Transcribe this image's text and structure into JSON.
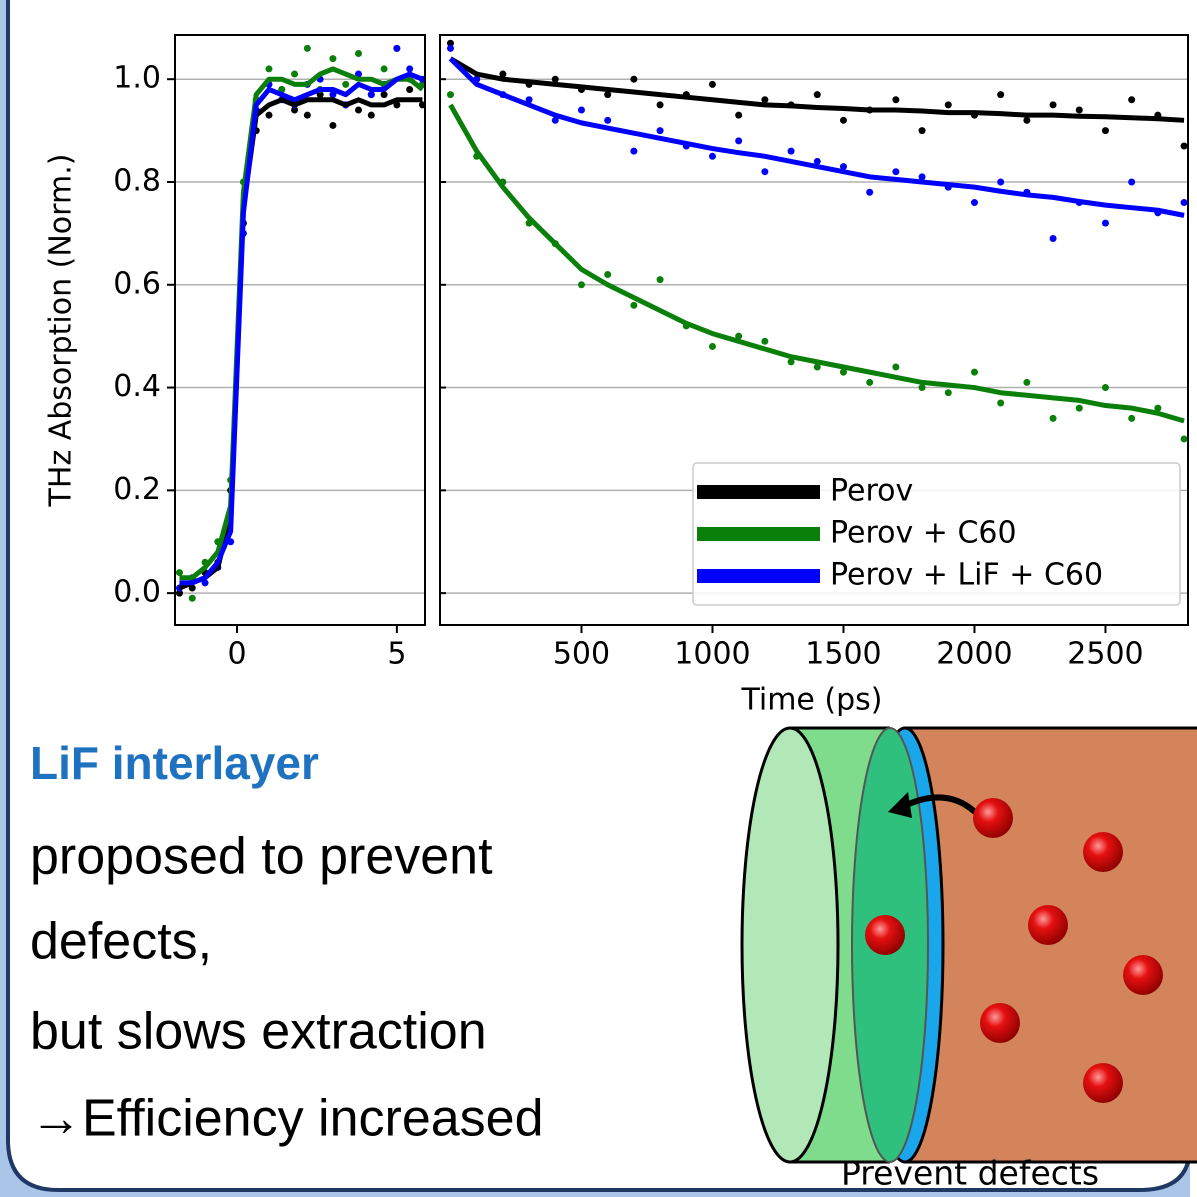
{
  "chart_data": [
    {
      "type": "line",
      "ylabel": "THz Absorption (Norm.)",
      "x": [
        -1.8,
        -1.4,
        -1.0,
        -0.6,
        -0.2,
        0.2,
        0.6,
        1.0,
        1.4,
        1.8,
        2.2,
        2.6,
        3.0,
        3.4,
        3.8,
        4.2,
        4.6,
        5.0,
        5.4,
        5.8
      ],
      "xlim": [
        -1.94,
        5.88
      ],
      "xticks": [
        0,
        5
      ],
      "ylim": [
        -0.062,
        1.086
      ],
      "yticks": [
        {
          "value": 0,
          "label": "0.0"
        },
        0.2,
        0.4,
        0.6,
        0.8,
        {
          "value": 1,
          "label": "1.0"
        }
      ],
      "grid": true,
      "series": [
        {
          "color": "#000000",
          "values": [
            0.01,
            0.02,
            0.03,
            0.05,
            0.15,
            0.75,
            0.93,
            0.95,
            0.96,
            0.95,
            0.96,
            0.96,
            0.96,
            0.95,
            0.96,
            0.95,
            0.95,
            0.96,
            0.96,
            0.96
          ],
          "points": [
            0.0,
            0.01,
            0.04,
            0.06,
            0.2,
            0.72,
            0.9,
            0.93,
            0.98,
            0.94,
            0.93,
            0.97,
            0.91,
            0.95,
            0.94,
            0.93,
            0.97,
            0.95,
            0.98,
            0.95
          ]
        },
        {
          "color": "#0a800a",
          "values": [
            0.03,
            0.03,
            0.05,
            0.08,
            0.17,
            0.78,
            0.97,
            1.0,
            1.0,
            0.99,
            0.99,
            1.01,
            1.02,
            1.01,
            1.0,
            1.0,
            0.99,
            1.0,
            1.0,
            0.98
          ],
          "points": [
            0.04,
            -0.01,
            0.06,
            0.1,
            0.22,
            0.8,
            0.96,
            1.02,
            0.98,
            1.01,
            1.06,
            0.98,
            1.04,
            0.99,
            1.05,
            0.97,
            1.02,
            1.06,
            1.0,
            0.99
          ]
        },
        {
          "color": "#0000ff",
          "values": [
            0.02,
            0.02,
            0.03,
            0.06,
            0.12,
            0.74,
            0.95,
            0.98,
            0.97,
            0.96,
            0.97,
            0.98,
            0.98,
            0.97,
            0.99,
            0.98,
            0.98,
            1.0,
            1.01,
            1.0
          ],
          "points": [
            0.01,
            0.03,
            0.02,
            0.05,
            0.1,
            0.7,
            0.94,
            0.99,
            0.96,
            0.95,
            0.99,
            1.0,
            0.97,
            0.95,
            1.01,
            0.97,
            0.99,
            1.06,
            1.02,
            1.0
          ]
        }
      ]
    },
    {
      "type": "line",
      "xlabel": "Time (ps)",
      "x": [
        0,
        100,
        200,
        300,
        400,
        500,
        600,
        700,
        800,
        900,
        1000,
        1100,
        1200,
        1300,
        1400,
        1500,
        1600,
        1700,
        1800,
        1900,
        2000,
        2100,
        2200,
        2300,
        2400,
        2500,
        2600,
        2700,
        2800
      ],
      "xlim": [
        -40,
        2815
      ],
      "xticks": [
        500,
        1000,
        1500,
        2000,
        2500
      ],
      "ylim": [
        -0.062,
        1.086
      ],
      "grid": true,
      "legend": "lower right",
      "series": [
        {
          "name": "Perov",
          "color": "#000000",
          "values": [
            1.04,
            1.01,
            1.0,
            0.995,
            0.99,
            0.985,
            0.98,
            0.975,
            0.97,
            0.965,
            0.96,
            0.955,
            0.95,
            0.948,
            0.945,
            0.943,
            0.94,
            0.94,
            0.938,
            0.935,
            0.935,
            0.933,
            0.93,
            0.93,
            0.928,
            0.927,
            0.925,
            0.923,
            0.92
          ],
          "points": [
            1.07,
            1.0,
            1.01,
            0.99,
            1.0,
            0.98,
            0.97,
            1.0,
            0.95,
            0.97,
            0.99,
            0.93,
            0.96,
            0.95,
            0.97,
            0.92,
            0.94,
            0.96,
            0.9,
            0.95,
            0.93,
            0.97,
            0.92,
            0.95,
            0.94,
            0.9,
            0.96,
            0.93,
            0.87
          ]
        },
        {
          "name": "Perov + C60",
          "color": "#0a800a",
          "values": [
            0.95,
            0.86,
            0.79,
            0.73,
            0.68,
            0.63,
            0.6,
            0.575,
            0.55,
            0.525,
            0.505,
            0.49,
            0.475,
            0.46,
            0.45,
            0.44,
            0.43,
            0.42,
            0.41,
            0.405,
            0.4,
            0.39,
            0.385,
            0.38,
            0.375,
            0.365,
            0.36,
            0.35,
            0.335
          ],
          "points": [
            0.97,
            0.85,
            0.8,
            0.72,
            0.68,
            0.6,
            0.62,
            0.56,
            0.61,
            0.52,
            0.48,
            0.5,
            0.49,
            0.45,
            0.44,
            0.43,
            0.41,
            0.44,
            0.4,
            0.39,
            0.43,
            0.37,
            0.41,
            0.34,
            0.36,
            0.4,
            0.34,
            0.36,
            0.3
          ]
        },
        {
          "name": "Perov + LiF + C60",
          "color": "#0000ff",
          "values": [
            1.04,
            0.99,
            0.97,
            0.95,
            0.93,
            0.915,
            0.905,
            0.895,
            0.885,
            0.875,
            0.865,
            0.857,
            0.85,
            0.84,
            0.83,
            0.82,
            0.81,
            0.805,
            0.8,
            0.795,
            0.79,
            0.782,
            0.775,
            0.77,
            0.762,
            0.755,
            0.75,
            0.745,
            0.735
          ],
          "points": [
            1.06,
            1.0,
            0.97,
            0.96,
            0.92,
            0.94,
            0.92,
            0.86,
            0.9,
            0.87,
            0.85,
            0.88,
            0.82,
            0.86,
            0.84,
            0.83,
            0.78,
            0.82,
            0.81,
            0.79,
            0.76,
            0.8,
            0.78,
            0.69,
            0.76,
            0.72,
            0.8,
            0.74,
            0.76
          ]
        }
      ]
    }
  ],
  "text": {
    "heading": "LiF interlayer",
    "lines": [
      "proposed to prevent",
      "defects,",
      "but slows extraction",
      "→Efficiency increased"
    ],
    "diagram_caption": "Prevent defects"
  }
}
